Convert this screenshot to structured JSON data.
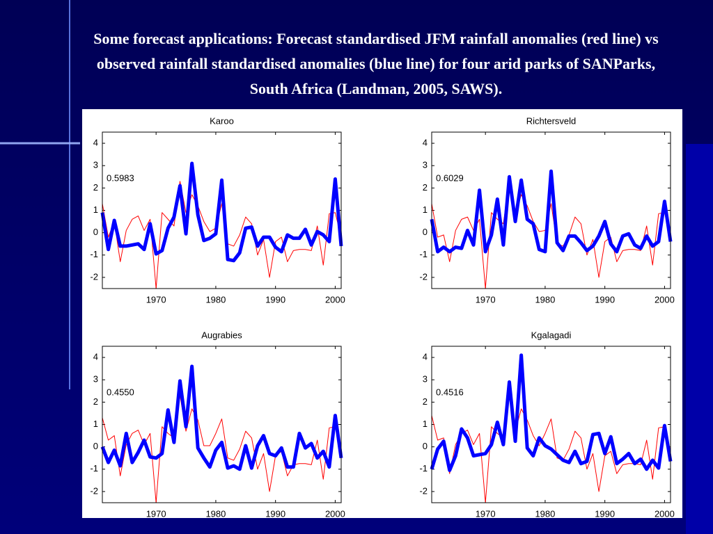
{
  "slide_title": "Some forecast applications: Forecast standardised JFM rainfall anomalies (red line) vs observed rainfall standardised anomalies (blue line) for four arid parks of SANParks, South Africa (Landman, 2005, SAWS).",
  "chart_data": [
    {
      "type": "line",
      "title": "Karoo",
      "annotation": "0.5983",
      "x": [
        1961,
        1962,
        1963,
        1964,
        1965,
        1966,
        1967,
        1968,
        1969,
        1970,
        1971,
        1972,
        1973,
        1974,
        1975,
        1976,
        1977,
        1978,
        1979,
        1980,
        1981,
        1982,
        1983,
        1984,
        1985,
        1986,
        1987,
        1988,
        1989,
        1990,
        1991,
        1992,
        1993,
        1994,
        1995,
        1996,
        1997,
        1998,
        1999,
        2000,
        2001
      ],
      "series": [
        {
          "color": "#ff0000",
          "line_width": 1,
          "values": [
            1.3,
            -0.2,
            0.5,
            -1.3,
            0.1,
            0.6,
            0.75,
            0.1,
            0.6,
            -2.5,
            0.9,
            0.6,
            0.3,
            2.3,
            0.9,
            1.7,
            1.2,
            0.5,
            0.05,
            0.2,
            1.3,
            -0.5,
            -0.6,
            -0.1,
            0.7,
            0.4,
            -1.0,
            -0.3,
            -2.0,
            -0.4,
            -0.2,
            -1.3,
            -0.8,
            -0.75,
            -0.75,
            -0.8,
            0.3,
            -1.45,
            0.85,
            0.9,
            -0.2
          ]
        },
        {
          "color": "#0000ff",
          "line_width": 5,
          "values": [
            0.9,
            -0.75,
            0.55,
            -0.6,
            -0.6,
            -0.55,
            -0.5,
            -0.75,
            0.4,
            -0.95,
            -0.8,
            0.2,
            0.7,
            2.1,
            -0.05,
            3.1,
            0.8,
            -0.35,
            -0.25,
            -0.05,
            2.35,
            -1.2,
            -1.25,
            -0.9,
            0.2,
            0.25,
            -0.6,
            -0.2,
            -0.2,
            -0.65,
            -0.85,
            -0.1,
            -0.25,
            -0.25,
            0.15,
            -0.55,
            0.05,
            -0.1,
            -0.4,
            2.4,
            -0.6
          ]
        }
      ],
      "xlim": [
        1961,
        2001
      ],
      "ylim": [
        -2.5,
        4.5
      ],
      "xticks": [
        1970,
        1980,
        1990,
        2000
      ],
      "yticks": [
        -2,
        -1,
        0,
        1,
        2,
        3,
        4
      ],
      "grid": false
    },
    {
      "type": "line",
      "title": "Richtersveld",
      "annotation": "0.6029",
      "x": [
        1961,
        1962,
        1963,
        1964,
        1965,
        1966,
        1967,
        1968,
        1969,
        1970,
        1971,
        1972,
        1973,
        1974,
        1975,
        1976,
        1977,
        1978,
        1979,
        1980,
        1981,
        1982,
        1983,
        1984,
        1985,
        1986,
        1987,
        1988,
        1989,
        1990,
        1991,
        1992,
        1993,
        1994,
        1995,
        1996,
        1997,
        1998,
        1999,
        2000,
        2001
      ],
      "series": [
        {
          "color": "#ff0000",
          "line_width": 1,
          "values": [
            1.3,
            -0.2,
            -0.1,
            -1.3,
            0.1,
            0.6,
            0.7,
            0.1,
            0.6,
            -2.5,
            0.9,
            0.6,
            0.4,
            2.3,
            0.8,
            1.7,
            1.2,
            0.5,
            0.05,
            0.1,
            1.3,
            -0.5,
            -0.6,
            -0.1,
            0.7,
            0.4,
            -1.0,
            -0.3,
            -2.0,
            -0.4,
            -0.2,
            -1.3,
            -0.8,
            -0.75,
            -0.75,
            -0.8,
            0.3,
            -1.45,
            0.85,
            0.9,
            -0.2
          ]
        },
        {
          "color": "#0000ff",
          "line_width": 5,
          "values": [
            0.6,
            -0.85,
            -0.65,
            -0.85,
            -0.65,
            -0.7,
            0.1,
            -0.55,
            1.9,
            -0.85,
            -0.1,
            1.5,
            -0.55,
            2.5,
            0.5,
            2.35,
            0.6,
            0.4,
            -0.75,
            -0.85,
            2.75,
            -0.45,
            -0.8,
            -0.15,
            -0.15,
            -0.45,
            -0.8,
            -0.6,
            -0.15,
            0.5,
            -0.5,
            -0.85,
            -0.15,
            -0.05,
            -0.55,
            -0.7,
            -0.15,
            -0.6,
            -0.4,
            1.4,
            -0.4
          ]
        }
      ],
      "xlim": [
        1961,
        2001
      ],
      "ylim": [
        -2.5,
        4.5
      ],
      "xticks": [
        1970,
        1980,
        1990,
        2000
      ],
      "yticks": [
        -2,
        -1,
        0,
        1,
        2,
        3,
        4
      ],
      "grid": false
    },
    {
      "type": "line",
      "title": "Augrabies",
      "annotation": "0.4550",
      "x": [
        1961,
        1962,
        1963,
        1964,
        1965,
        1966,
        1967,
        1968,
        1969,
        1970,
        1971,
        1972,
        1973,
        1974,
        1975,
        1976,
        1977,
        1978,
        1979,
        1980,
        1981,
        1982,
        1983,
        1984,
        1985,
        1986,
        1987,
        1988,
        1989,
        1990,
        1991,
        1992,
        1993,
        1994,
        1995,
        1996,
        1997,
        1998,
        1999,
        2000,
        2001
      ],
      "series": [
        {
          "color": "#ff0000",
          "line_width": 1,
          "values": [
            1.3,
            0.3,
            0.5,
            -1.3,
            0.1,
            0.6,
            0.75,
            0.1,
            0.6,
            -2.5,
            0.9,
            0.6,
            0.4,
            2.3,
            0.7,
            1.7,
            1.2,
            0.05,
            0.05,
            0.6,
            1.25,
            -0.5,
            -0.6,
            -0.1,
            0.7,
            0.4,
            -1.0,
            -0.3,
            -2.0,
            -0.4,
            -0.2,
            -1.3,
            -0.8,
            -0.75,
            -0.75,
            -0.8,
            0.3,
            -1.45,
            0.85,
            0.9,
            -0.2
          ]
        },
        {
          "color": "#0000ff",
          "line_width": 5,
          "values": [
            0,
            -0.7,
            -0.15,
            -0.85,
            0.6,
            -0.7,
            -0.25,
            0.3,
            -0.45,
            -0.5,
            -0.3,
            1.65,
            0.2,
            2.95,
            0.9,
            3.6,
            -0.05,
            -0.5,
            -0.9,
            -0.15,
            0.2,
            -0.95,
            -0.85,
            -1.0,
            0.05,
            -0.95,
            0.05,
            0.5,
            -0.3,
            -0.4,
            -0.05,
            -0.9,
            -0.9,
            0.6,
            -0.05,
            0.15,
            -0.5,
            -0.2,
            -0.9,
            1.4,
            -0.5
          ]
        }
      ],
      "xlim": [
        1961,
        2001
      ],
      "ylim": [
        -2.5,
        4.5
      ],
      "xticks": [
        1970,
        1980,
        1990,
        2000
      ],
      "yticks": [
        -2,
        -1,
        0,
        1,
        2,
        3,
        4
      ],
      "grid": false
    },
    {
      "type": "line",
      "title": "Kgalagadi",
      "annotation": "0.4516",
      "x": [
        1961,
        1962,
        1963,
        1964,
        1965,
        1966,
        1967,
        1968,
        1969,
        1970,
        1971,
        1972,
        1973,
        1974,
        1975,
        1976,
        1977,
        1978,
        1979,
        1980,
        1981,
        1982,
        1983,
        1984,
        1985,
        1986,
        1987,
        1988,
        1989,
        1990,
        1991,
        1992,
        1993,
        1994,
        1995,
        1996,
        1997,
        1998,
        1999,
        2000,
        2001
      ],
      "series": [
        {
          "color": "#ff0000",
          "line_width": 1,
          "values": [
            1.4,
            0.3,
            0.4,
            -1.2,
            0.1,
            0.6,
            0.75,
            0.1,
            0.6,
            -2.5,
            0.9,
            0.6,
            0.4,
            2.3,
            0.7,
            1.7,
            1.2,
            0.5,
            0.05,
            0.6,
            1.25,
            -0.5,
            -0.6,
            -0.1,
            0.7,
            0.4,
            -1.0,
            -0.3,
            -2.0,
            -0.4,
            -0.2,
            -1.2,
            -0.8,
            -0.75,
            -0.75,
            -0.8,
            0.3,
            -1.45,
            0.85,
            0.9,
            -0.2
          ]
        },
        {
          "color": "#0000ff",
          "line_width": 5,
          "values": [
            -1.0,
            -0.1,
            0.25,
            -1.05,
            -0.4,
            0.8,
            0.4,
            -0.4,
            -0.35,
            -0.3,
            0.1,
            1.1,
            0.1,
            2.9,
            0.25,
            4.1,
            -0.05,
            -0.4,
            0.4,
            0.05,
            -0.1,
            -0.35,
            -0.6,
            -0.7,
            -0.2,
            -0.75,
            -0.65,
            0.55,
            0.6,
            -0.3,
            0.45,
            -0.75,
            -0.55,
            -0.3,
            -0.75,
            -0.55,
            -1.0,
            -0.6,
            -0.95,
            0.95,
            -0.65
          ]
        }
      ],
      "xlim": [
        1961,
        2001
      ],
      "ylim": [
        -2.5,
        4.5
      ],
      "xticks": [
        1970,
        1980,
        1990,
        2000
      ],
      "yticks": [
        -2,
        -1,
        0,
        1,
        2,
        3,
        4
      ],
      "grid": false
    }
  ]
}
